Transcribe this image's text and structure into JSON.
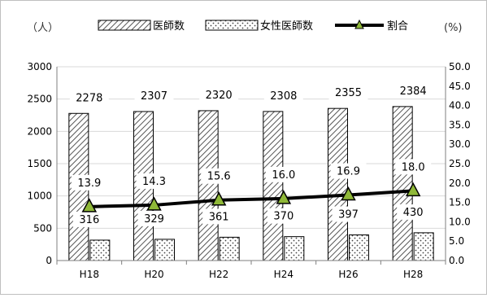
{
  "chart_data": {
    "type": "bar",
    "categories": [
      "H18",
      "H20",
      "H22",
      "H24",
      "H26",
      "H28"
    ],
    "series": [
      {
        "name": "医師数",
        "type": "bar",
        "axis": "left",
        "values": [
          2278,
          2307,
          2320,
          2308,
          2355,
          2384
        ],
        "pattern": "diagonal-hatch"
      },
      {
        "name": "女性医師数",
        "type": "bar",
        "axis": "left",
        "values": [
          316,
          329,
          361,
          370,
          397,
          430
        ],
        "pattern": "dots"
      },
      {
        "name": "割合",
        "type": "line",
        "axis": "right",
        "values": [
          13.9,
          14.3,
          15.6,
          16.0,
          16.9,
          18.0
        ],
        "marker": "triangle",
        "marker_color": "#8fb838"
      }
    ],
    "left_unit": "（人）",
    "right_unit": "(%)",
    "ylim": [
      0,
      3000
    ],
    "y_ticks": [
      0,
      500,
      1000,
      1500,
      2000,
      2500,
      3000
    ],
    "y2lim": [
      0,
      50
    ],
    "y2_ticks": [
      "0.0",
      "5.0",
      "10.0",
      "15.0",
      "20.0",
      "25.0",
      "30.0",
      "35.0",
      "40.0",
      "45.0",
      "50.0"
    ],
    "grid": true,
    "legend_position": "top"
  }
}
